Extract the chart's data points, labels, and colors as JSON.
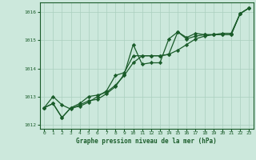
{
  "title": "Graphe pression niveau de la mer (hPa)",
  "background_color": "#cce8dc",
  "grid_color": "#aacfbf",
  "line_color": "#1a5c2a",
  "xlim": [
    -0.5,
    23.5
  ],
  "ylim": [
    1011.85,
    1016.35
  ],
  "yticks": [
    1012,
    1013,
    1014,
    1015,
    1016
  ],
  "xticks": [
    0,
    1,
    2,
    3,
    4,
    5,
    6,
    7,
    8,
    9,
    10,
    11,
    12,
    13,
    14,
    15,
    16,
    17,
    18,
    19,
    20,
    21,
    22,
    23
  ],
  "series": [
    [
      1012.6,
      1013.0,
      1012.7,
      1012.55,
      1012.7,
      1012.85,
      1012.9,
      1013.1,
      1013.35,
      1013.8,
      1014.85,
      1014.15,
      1014.2,
      1014.2,
      1015.05,
      1015.3,
      1015.05,
      1015.15,
      1015.2,
      1015.2,
      1015.2,
      1015.2,
      1015.95,
      1016.15
    ],
    [
      1012.6,
      1012.75,
      1012.25,
      1012.6,
      1012.65,
      1012.8,
      1013.0,
      1013.2,
      1013.75,
      1013.85,
      1014.45,
      1014.45,
      1014.45,
      1014.45,
      1014.5,
      1014.65,
      1014.85,
      1015.05,
      1015.15,
      1015.2,
      1015.2,
      1015.2,
      1015.95,
      1016.15
    ],
    [
      1012.6,
      1012.75,
      1012.25,
      1012.6,
      1012.75,
      1013.0,
      1013.05,
      1013.15,
      1013.4,
      1013.75,
      1014.2,
      1014.45,
      1014.45,
      1014.45,
      1014.5,
      1015.3,
      1015.1,
      1015.25,
      1015.2,
      1015.2,
      1015.25,
      1015.25,
      1015.95,
      1016.15
    ]
  ],
  "marker": "D",
  "markersize": 2.2,
  "linewidth": 0.9
}
